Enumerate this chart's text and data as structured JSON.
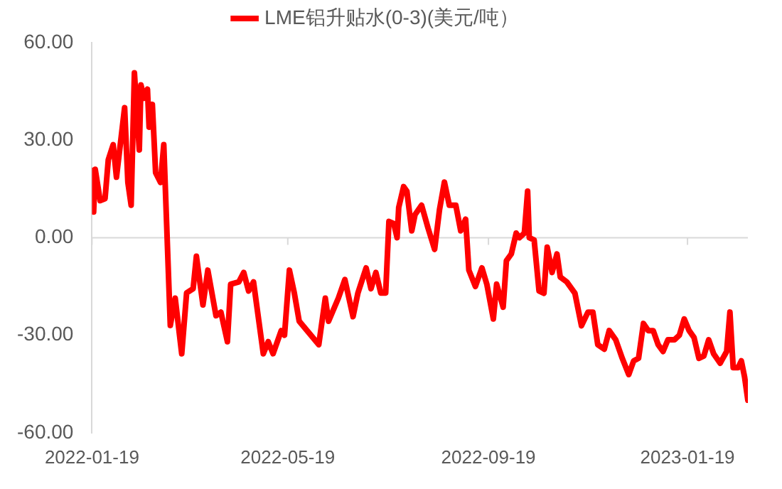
{
  "chart_data": {
    "type": "line",
    "legend": "top",
    "grid": false,
    "marker": "none",
    "line_style": "solid",
    "xlim": [
      "2022-01-19",
      "2023-02-25"
    ],
    "xticks": [
      "2022-01-19",
      "2022-05-19",
      "2022-09-19",
      "2023-01-19"
    ],
    "ref_lines": [
      {
        "axis": "y",
        "value": 0,
        "color": "#d9d9d9"
      }
    ],
    "ylim": [
      -60,
      60
    ],
    "yticks": [
      {
        "value": -60,
        "label": "-60.00"
      },
      {
        "value": -30,
        "label": "-30.00"
      },
      {
        "value": 0,
        "label": "0.00"
      },
      {
        "value": 30,
        "label": "30.00"
      },
      {
        "value": 60,
        "label": "60.00"
      }
    ],
    "x": [
      "2022-01-19",
      "2022-01-20",
      "2022-01-21",
      "2022-01-24",
      "2022-01-27",
      "2022-01-29",
      "2022-02-01",
      "2022-02-03",
      "2022-02-06",
      "2022-02-08",
      "2022-02-10",
      "2022-02-12",
      "2022-02-14",
      "2022-02-17",
      "2022-02-18",
      "2022-02-20",
      "2022-02-22",
      "2022-02-23",
      "2022-02-25",
      "2022-02-27",
      "2022-03-02",
      "2022-03-04",
      "2022-03-08",
      "2022-03-11",
      "2022-03-15",
      "2022-03-18",
      "2022-03-22",
      "2022-03-24",
      "2022-03-28",
      "2022-03-31",
      "2022-04-05",
      "2022-04-08",
      "2022-04-12",
      "2022-04-14",
      "2022-04-19",
      "2022-04-22",
      "2022-04-25",
      "2022-04-28",
      "2022-05-04",
      "2022-05-07",
      "2022-05-10",
      "2022-05-15",
      "2022-05-17",
      "2022-05-20",
      "2022-05-23",
      "2022-05-26",
      "2022-06-01",
      "2022-06-07",
      "2022-06-11",
      "2022-06-13",
      "2022-06-19",
      "2022-06-23",
      "2022-06-28",
      "2022-07-01",
      "2022-07-06",
      "2022-07-09",
      "2022-07-12",
      "2022-07-15",
      "2022-07-18",
      "2022-07-20",
      "2022-07-23",
      "2022-07-25",
      "2022-07-26",
      "2022-07-29",
      "2022-07-31",
      "2022-08-03",
      "2022-08-05",
      "2022-08-09",
      "2022-08-13",
      "2022-08-17",
      "2022-08-20",
      "2022-08-23",
      "2022-08-26",
      "2022-08-30",
      "2022-09-02",
      "2022-09-05",
      "2022-09-07",
      "2022-09-11",
      "2022-09-15",
      "2022-09-18",
      "2022-09-22",
      "2022-09-24",
      "2022-09-28",
      "2022-09-30",
      "2022-10-03",
      "2022-10-06",
      "2022-10-08",
      "2022-10-11",
      "2022-10-13",
      "2022-10-14",
      "2022-10-17",
      "2022-10-20",
      "2022-10-23",
      "2022-10-25",
      "2022-10-28",
      "2022-10-31",
      "2022-11-02",
      "2022-11-06",
      "2022-11-11",
      "2022-11-15",
      "2022-11-19",
      "2022-11-22",
      "2022-11-25",
      "2022-11-29",
      "2022-12-02",
      "2022-12-06",
      "2022-12-10",
      "2022-12-14",
      "2022-12-17",
      "2022-12-20",
      "2022-12-23",
      "2022-12-26",
      "2022-12-29",
      "2023-01-01",
      "2023-01-04",
      "2023-01-07",
      "2023-01-11",
      "2023-01-14",
      "2023-01-17",
      "2023-01-20",
      "2023-01-23",
      "2023-01-26",
      "2023-01-29",
      "2023-02-01",
      "2023-02-04",
      "2023-02-08",
      "2023-02-12",
      "2023-02-14",
      "2023-02-16",
      "2023-02-19",
      "2023-02-21",
      "2023-02-23",
      "2023-02-25"
    ],
    "series": [
      {
        "name": "LME铝升贴水(0-3)(美元/吨）",
        "color": "#ff0000",
        "values": [
          20.7,
          7.9,
          21,
          11.4,
          12,
          24,
          28.6,
          18.6,
          31.4,
          40,
          17,
          10,
          50.7,
          27,
          47,
          42.9,
          45.7,
          34,
          41,
          20,
          17,
          28.6,
          -27,
          -18.6,
          -35.7,
          -17,
          -15.7,
          -5.7,
          -20.7,
          -10,
          -24,
          -22.9,
          -32,
          -14.3,
          -13.6,
          -10.7,
          -16.4,
          -13.6,
          -35.7,
          -32,
          -35.7,
          -28.6,
          -30,
          -10,
          -17,
          -25.7,
          -29.3,
          -32.9,
          -18.6,
          -25.7,
          -18.6,
          -12.9,
          -24.3,
          -17,
          -9.3,
          -15.7,
          -10.7,
          -17,
          -17,
          5,
          4.3,
          0,
          9.3,
          15.7,
          14.3,
          2.1,
          7.1,
          10,
          2.9,
          -3.6,
          8.6,
          17.1,
          10,
          10,
          2.1,
          5.7,
          -10,
          -15,
          -9.3,
          -14.3,
          -25,
          -14.3,
          -21.4,
          -7.1,
          -5,
          1.4,
          0,
          1.4,
          14.3,
          0,
          -0.7,
          -16.4,
          -17.1,
          -2.9,
          -10.7,
          -5,
          -12.1,
          -13.6,
          -17.1,
          -27.1,
          -22.9,
          -22.9,
          -32.9,
          -34.3,
          -28.6,
          -31.4,
          -37.1,
          -42.1,
          -37.9,
          -37.1,
          -26.4,
          -28.6,
          -28.6,
          -32.9,
          -35,
          -31.4,
          -31.4,
          -30,
          -25,
          -28.6,
          -30.7,
          -37.1,
          -36.4,
          -31.4,
          -35.7,
          -38.6,
          -35,
          -22.9,
          -40,
          -40,
          -37.9,
          -42.9,
          -50
        ]
      }
    ]
  }
}
